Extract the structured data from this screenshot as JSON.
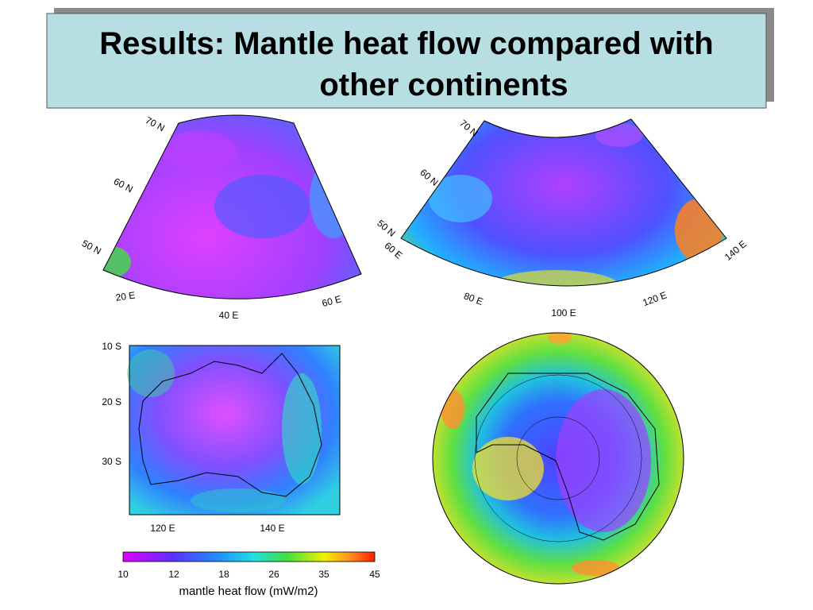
{
  "header": {
    "title_lines": [
      "Results: Mantle heat flow compared with",
      "other continents"
    ]
  },
  "maps": {
    "europe": {
      "lat_labels": [
        "70 N",
        "60 N",
        "50 N"
      ],
      "lon_labels": [
        "20 E",
        "40 E",
        "60 E"
      ]
    },
    "asia": {
      "lat_labels": [
        "70 N",
        "60 N",
        "50 N"
      ],
      "lon_labels": [
        "60 E",
        "80 E",
        "100 E",
        "120 E",
        "140 E"
      ]
    },
    "australia": {
      "lat_labels": [
        "10 S",
        "20 S",
        "30 S"
      ],
      "lon_labels": [
        "120 E",
        "140 E"
      ]
    }
  },
  "colorbar": {
    "ticks": [
      "10",
      "12",
      "18",
      "26",
      "35",
      "45"
    ],
    "label": "mantle heat flow (mW/m2)"
  }
}
